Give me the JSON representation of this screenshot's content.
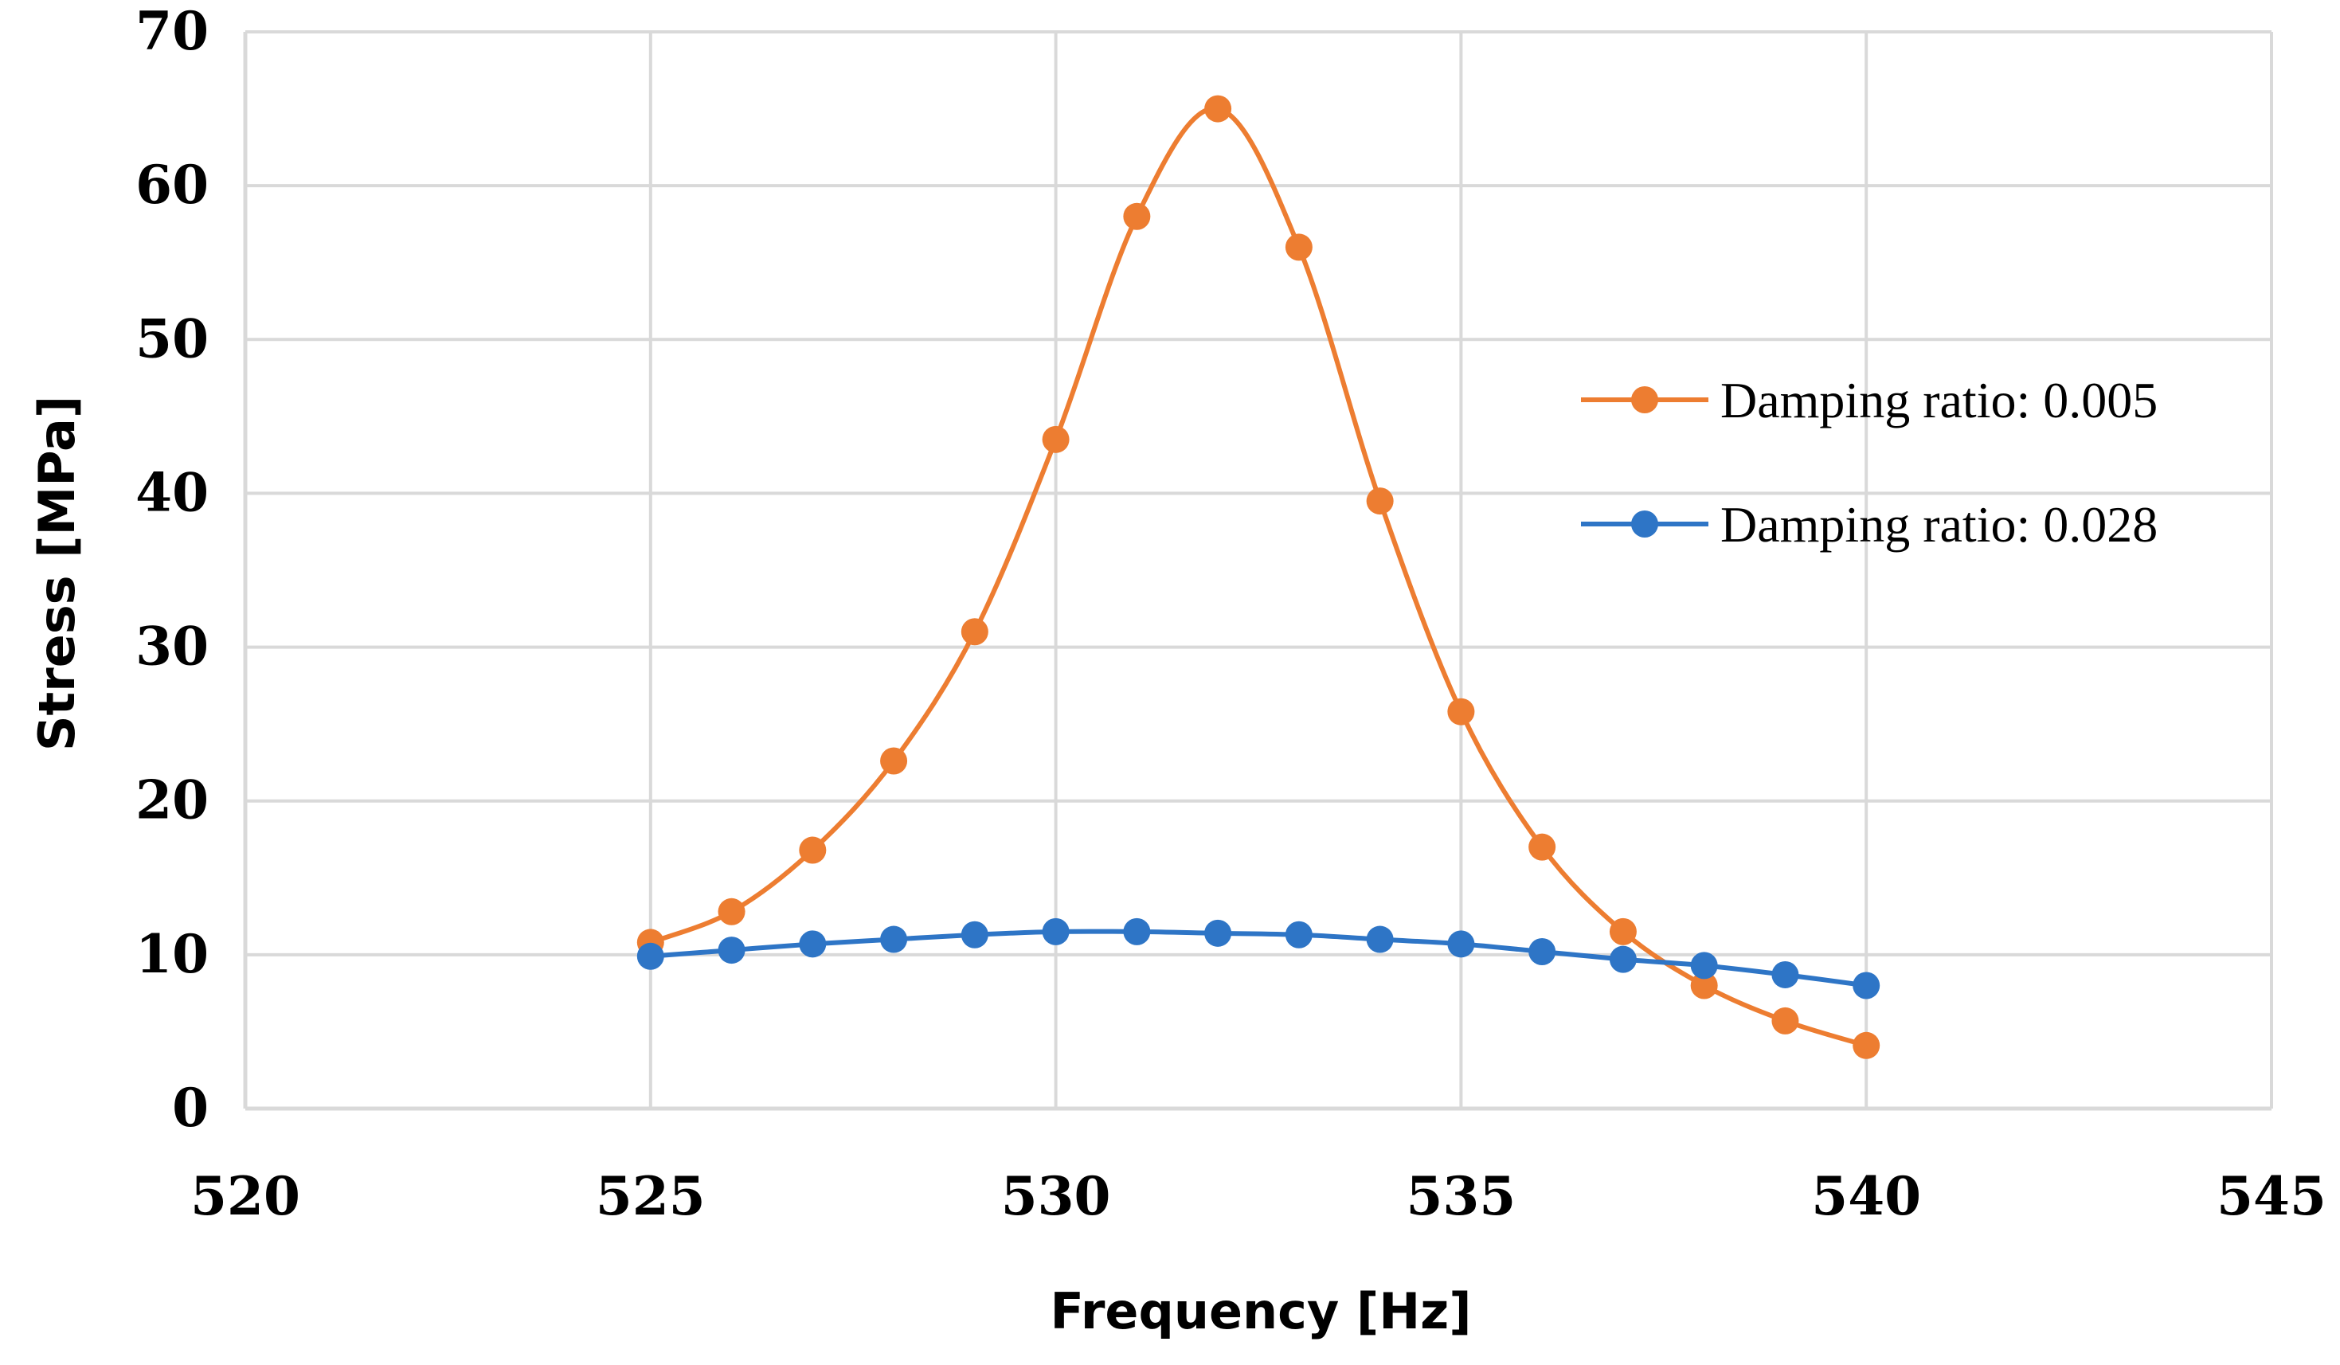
{
  "chart_data": {
    "type": "line",
    "title": "",
    "xlabel": "Frequency [Hz]",
    "ylabel": "Stress [MPa]",
    "xlim": [
      520,
      545
    ],
    "ylim": [
      0,
      70
    ],
    "x_ticks": [
      "520",
      "525",
      "530",
      "535",
      "540",
      "545"
    ],
    "y_ticks": [
      "0",
      "10",
      "20",
      "30",
      "40",
      "50",
      "60",
      "70"
    ],
    "grid": true,
    "legend_position": "right",
    "x": [
      525,
      526,
      527,
      528,
      529,
      530,
      531,
      532,
      533,
      534,
      535,
      536,
      537,
      538,
      539,
      540
    ],
    "series": [
      {
        "name": "Damping ratio: 0.005",
        "color": "#ED7D31",
        "values": [
          10.8,
          12.8,
          16.8,
          22.6,
          31.0,
          43.5,
          58.0,
          65.0,
          56.0,
          39.5,
          25.8,
          17.0,
          11.5,
          8.0,
          5.7,
          4.1
        ]
      },
      {
        "name": "Damping ratio: 0.028",
        "color": "#2E75C6",
        "values": [
          9.9,
          10.3,
          10.7,
          11.0,
          11.3,
          11.5,
          11.5,
          11.4,
          11.3,
          11.0,
          10.7,
          10.2,
          9.7,
          9.3,
          8.7,
          8.0
        ]
      }
    ]
  }
}
